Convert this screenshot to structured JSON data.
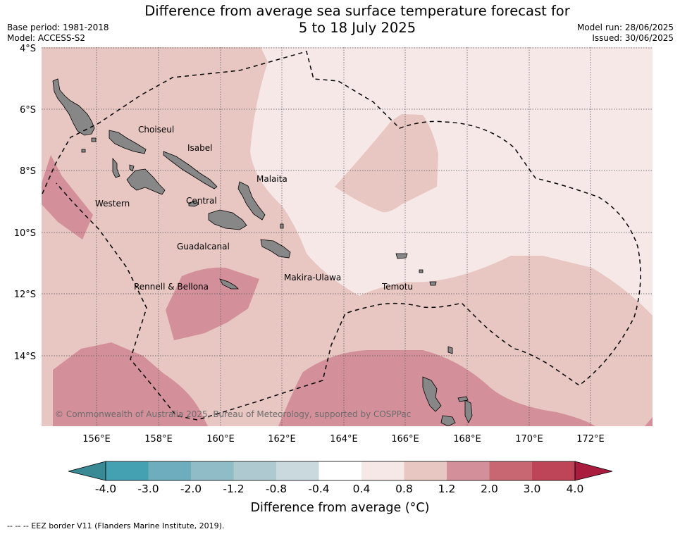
{
  "title": {
    "line1": "Difference from average sea surface temperature forecast for",
    "line2": "5 to 18 July 2025"
  },
  "meta_left": {
    "base_period": "Base period: 1981-2018",
    "model": "Model: ACCESS-S2"
  },
  "meta_right": {
    "model_run": "Model run: 28/06/2025",
    "issued": "Issued: 30/06/2025"
  },
  "map": {
    "lon_ticks": [
      "156°E",
      "158°E",
      "160°E",
      "162°E",
      "164°E",
      "166°E",
      "168°E",
      "170°E",
      "172°E"
    ],
    "lat_ticks": [
      "4°S",
      "6°S",
      "8°S",
      "10°S",
      "12°S",
      "14°S"
    ],
    "province_labels": [
      {
        "name": "Choiseul"
      },
      {
        "name": "Isabel"
      },
      {
        "name": "Malaita"
      },
      {
        "name": "Western"
      },
      {
        "name": "Central"
      },
      {
        "name": "Guadalcanal"
      },
      {
        "name": "Makira-Ulawa"
      },
      {
        "name": "Rennell & Bellona"
      },
      {
        "name": "Temotu"
      }
    ],
    "copyright": "© Commonwealth of Australia 2025, Bureau of Meteorology, supported by COSPPac",
    "colors": {
      "bin_0.4_0.8": "#f5e8e7",
      "bin_0.8_1.2": "#e8c6c2",
      "bin_1.2_2.0": "#d4909a",
      "land": "#878787"
    }
  },
  "colorbar": {
    "ticks": [
      "-4.0",
      "-3.0",
      "-2.0",
      "-1.2",
      "-0.8",
      "-0.4",
      "0.4",
      "0.8",
      "1.2",
      "2.0",
      "3.0",
      "4.0"
    ],
    "colors": [
      "#3a8a96",
      "#44a1b1",
      "#6eadbd",
      "#8fbcc7",
      "#aec9d0",
      "#cad9de",
      "#ffffff",
      "#f5e8e7",
      "#e8c6c2",
      "#d4909a",
      "#c86771",
      "#be4558",
      "#aa1c3d"
    ],
    "label": "Difference from average (°C)"
  },
  "footnote": "--  --  -- EEZ border V11 (Flanders Marine Institute, 2019)."
}
